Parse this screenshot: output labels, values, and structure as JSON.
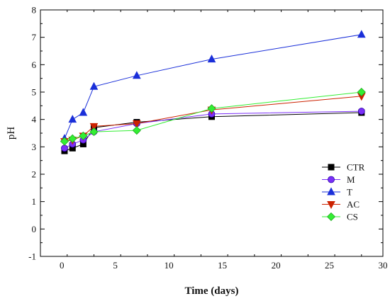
{
  "chart_data": {
    "type": "line",
    "title": "",
    "xlabel": "Time (days)",
    "ylabel": "pH",
    "xlim": [
      -2,
      30
    ],
    "ylim": [
      -1,
      8
    ],
    "xticks": [
      0,
      5,
      10,
      15,
      20,
      25,
      30
    ],
    "yticks": [
      -1,
      0,
      1,
      2,
      3,
      4,
      5,
      6,
      7,
      8
    ],
    "grid": false,
    "legend_position": "right",
    "series": [
      {
        "name": "CTR",
        "color": "#000000",
        "marker": "square",
        "x": [
          0.25,
          1,
          2,
          3,
          7,
          14,
          28
        ],
        "y": [
          2.85,
          2.95,
          3.1,
          3.7,
          3.9,
          4.1,
          4.25
        ]
      },
      {
        "name": "M",
        "color": "#7b2ff7",
        "marker": "circle",
        "x": [
          0.25,
          1,
          2,
          3,
          7,
          14,
          28
        ],
        "y": [
          2.95,
          3.1,
          3.25,
          3.55,
          3.85,
          4.2,
          4.3
        ]
      },
      {
        "name": "T",
        "color": "#1a2fd9",
        "marker": "triangle-up",
        "x": [
          0.25,
          1,
          2,
          3,
          7,
          14,
          28
        ],
        "y": [
          3.3,
          4.0,
          4.25,
          5.2,
          5.6,
          6.2,
          7.1
        ]
      },
      {
        "name": "AC",
        "color": "#cc2200",
        "marker": "triangle-down",
        "x": [
          0.25,
          1,
          2,
          3,
          7,
          14,
          28
        ],
        "y": [
          3.2,
          3.25,
          3.4,
          3.75,
          3.85,
          4.35,
          4.85
        ]
      },
      {
        "name": "CS",
        "color": "#33ee33",
        "marker": "diamond",
        "x": [
          0.25,
          1,
          2,
          3,
          7,
          14,
          28
        ],
        "y": [
          3.2,
          3.3,
          3.4,
          3.55,
          3.6,
          4.4,
          5.0
        ]
      }
    ]
  }
}
